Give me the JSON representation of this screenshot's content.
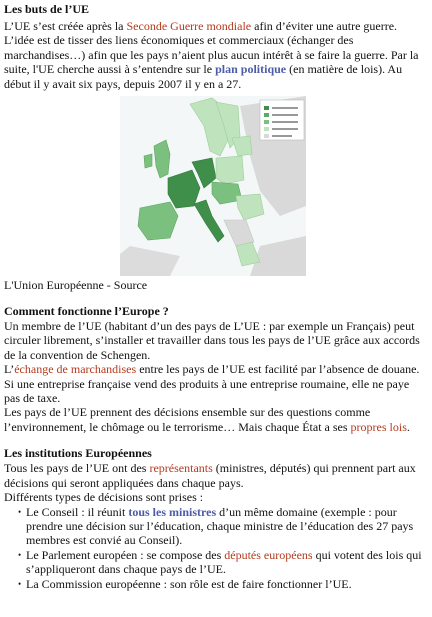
{
  "section1": {
    "title": "Les buts de l’UE",
    "p1_a": "L’UE s’est créée après la ",
    "p1_link": "Seconde Guerre mondiale",
    "p1_b": " afin d’éviter une autre guerre.",
    "p2": "L’idée est de tisser des liens économiques et commerciaux (échanger des marchandises…) afin que les pays n’aient plus aucun intérêt à se faire la guerre. Par la suite, l'UE cherche aussi à s’entendre sur le ",
    "p2_link": "plan politique",
    "p2_b": " (en matière de lois). Au début il y avait six pays, depuis 2007 il y en a 27.",
    "map_caption": "L'Union Européenne - Source"
  },
  "section2": {
    "title": "Comment fonctionne l’Europe ?",
    "p1": "Un membre de l’UE (habitant d’un des pays de L’UE : par exemple un Français) peut circuler librement, s’installer et travailler dans tous les pays de l’UE grâce aux accords de la convention de Schengen.",
    "p2_pre": "L’",
    "p2_link": "échange de marchandises",
    "p2_b": " entre les pays de l’UE est facilité par l’absence de douane. Si une entreprise française vend des produits à une entreprise roumaine, elle ne paye pas de taxe.",
    "p3_a": "Les pays de l’UE prennent des décisions ensemble sur des questions comme l’environnement, le chômage ou le terrorisme… Mais chaque État a ses ",
    "p3_link": "propres lois",
    "p3_b": "."
  },
  "section3": {
    "title": "Les institutions Européennes",
    "p1_a": "Tous les pays de l’UE ont des ",
    "p1_link": "représentants",
    "p1_b": " (ministres, députés) qui prennent part aux décisions qui seront appliquées dans chaque pays.",
    "p2": "Différents types de décisions sont prises :",
    "items": [
      {
        "a": "Le Conseil : il réunit ",
        "link": "tous les ministres",
        "link_style": "blue",
        "b": " d’un même domaine (exemple : pour prendre une décision sur l’éducation, chaque ministre de l’éducation des 27 pays membres est convié au Conseil)."
      },
      {
        "a": "Le Parlement européen : se compose des ",
        "link": "députés européens",
        "link_style": "red",
        "b": " qui votent des lois qui s’appliqueront dans chaque pays de l’UE."
      },
      {
        "a": "La Commission européenne : son rôle est de faire fonctionner l’UE.",
        "link": "",
        "link_style": "none",
        "b": ""
      }
    ]
  },
  "colors": {
    "text": "#111111",
    "link_red": "#b33a1e",
    "link_blue": "#4c5ca8",
    "map_dark": "#3f8f4a",
    "map_mid": "#7cc07f",
    "map_light": "#bfe3bd",
    "map_gray": "#d9d9d9"
  }
}
